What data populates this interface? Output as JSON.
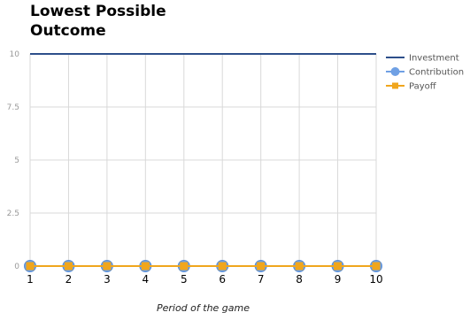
{
  "chart_data": {
    "type": "line",
    "title": "Lowest Possible Outcome",
    "xlabel": "Period of the game",
    "ylabel": "",
    "x": [
      1,
      2,
      3,
      4,
      5,
      6,
      7,
      8,
      9,
      10
    ],
    "xlim": [
      1,
      10
    ],
    "ylim": [
      0,
      10
    ],
    "yticks": [
      0,
      2.5,
      5,
      7.5,
      10
    ],
    "grid": true,
    "legend_position": "right",
    "series": [
      {
        "name": "Investment",
        "color": "#2d4f8a",
        "marker": "none",
        "values": [
          10,
          10,
          10,
          10,
          10,
          10,
          10,
          10,
          10,
          10
        ]
      },
      {
        "name": "Contribution",
        "color": "#6fa0e4",
        "marker": "circle",
        "values": [
          0,
          0,
          0,
          0,
          0,
          0,
          0,
          0,
          0,
          0
        ]
      },
      {
        "name": "Payoff",
        "color": "#f0a61d",
        "marker": "square",
        "values": [
          0,
          0,
          0,
          0,
          0,
          0,
          0,
          0,
          0,
          0
        ]
      }
    ]
  }
}
